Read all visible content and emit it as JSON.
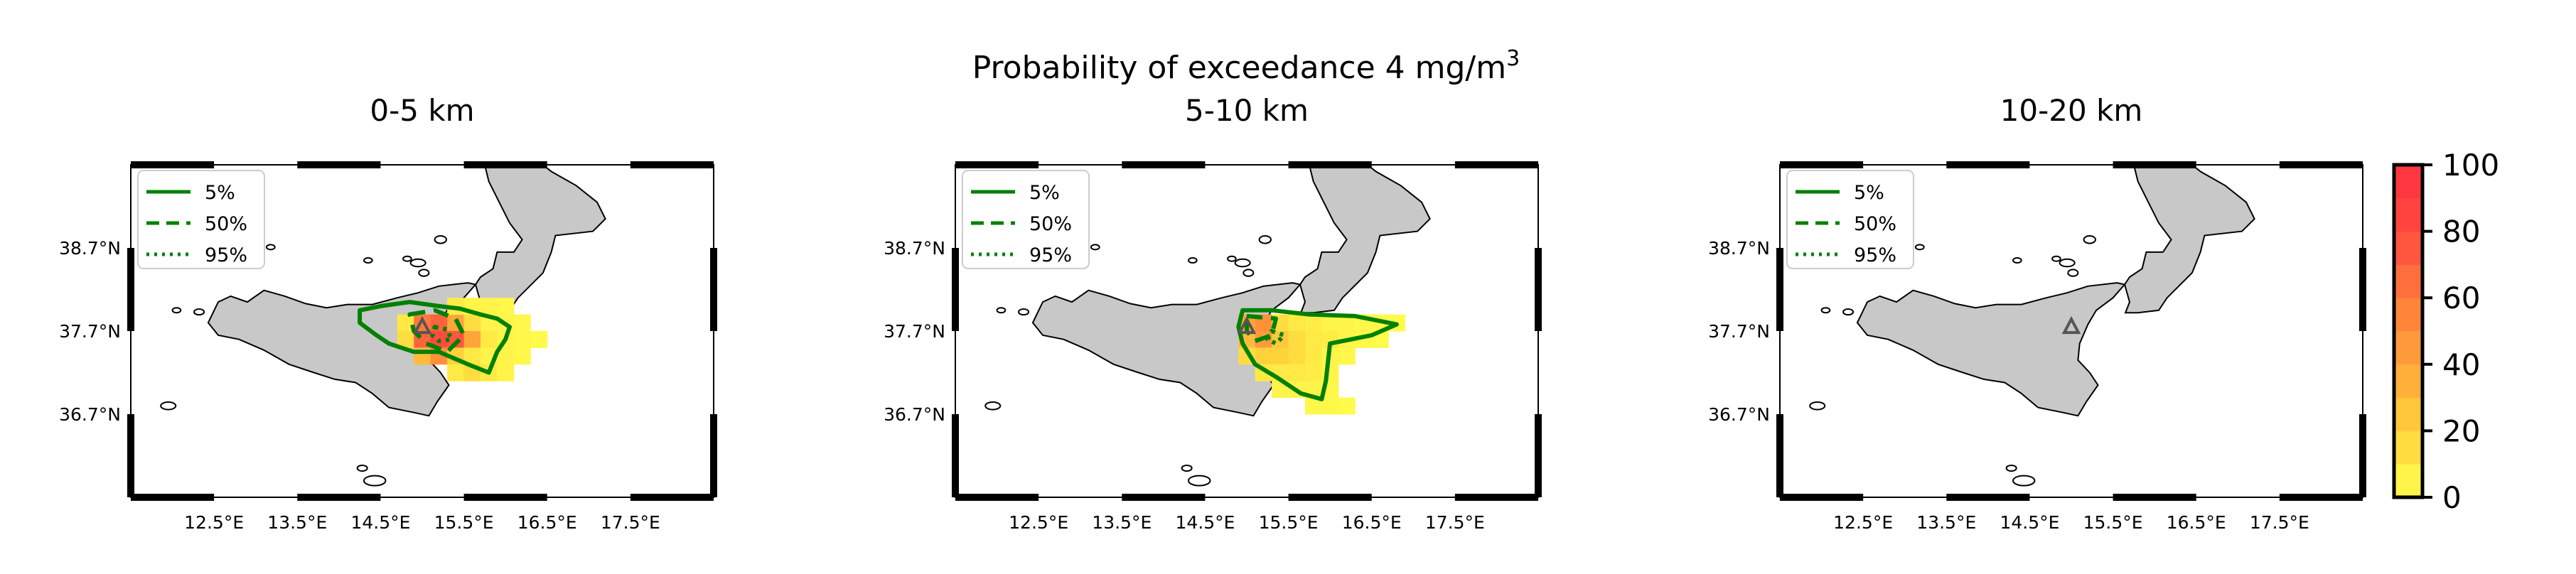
{
  "figure": {
    "title_main": "Probability of exceedance 4 mg/m",
    "title_superscript": "3"
  },
  "chart_data": [
    {
      "type": "heatmap",
      "title": "0-5 km",
      "xlim": [
        11.5,
        18.5
      ],
      "ylim": [
        35.7,
        39.7
      ],
      "xticks": [
        "12.5°E",
        "13.5°E",
        "14.5°E",
        "15.5°E",
        "16.5°E",
        "17.5°E"
      ],
      "xtick_values": [
        12.5,
        13.5,
        14.5,
        15.5,
        16.5,
        17.5
      ],
      "yticks": [
        "38.7°N",
        "37.7°N",
        "36.7°N"
      ],
      "ytick_values": [
        38.7,
        37.7,
        36.7
      ],
      "legend": [
        "5%",
        "50%",
        "95%"
      ],
      "legend_position": "top-left",
      "vent": [
        15.0,
        37.75
      ],
      "cell_size": [
        0.2,
        0.2
      ],
      "cells": [
        [
          14.8,
          37.8,
          10
        ],
        [
          15.0,
          37.8,
          60
        ],
        [
          15.2,
          37.8,
          70
        ],
        [
          15.4,
          37.8,
          40
        ],
        [
          15.6,
          37.8,
          15
        ],
        [
          14.8,
          37.6,
          15
        ],
        [
          15.0,
          37.6,
          70
        ],
        [
          15.2,
          37.6,
          80
        ],
        [
          15.4,
          37.6,
          75
        ],
        [
          15.6,
          37.6,
          40
        ],
        [
          15.8,
          37.6,
          10
        ],
        [
          15.0,
          37.4,
          30
        ],
        [
          15.2,
          37.4,
          50
        ],
        [
          15.4,
          37.4,
          20
        ],
        [
          15.6,
          37.4,
          10
        ],
        [
          15.4,
          38.0,
          8
        ],
        [
          15.6,
          38.0,
          5
        ],
        [
          15.8,
          38.0,
          5
        ],
        [
          16.0,
          38.0,
          3
        ],
        [
          15.8,
          37.8,
          5
        ],
        [
          16.0,
          37.8,
          5
        ],
        [
          16.2,
          37.8,
          3
        ],
        [
          16.0,
          37.6,
          5
        ],
        [
          16.2,
          37.6,
          3
        ],
        [
          16.4,
          37.6,
          2
        ],
        [
          15.8,
          37.4,
          5
        ],
        [
          16.0,
          37.4,
          5
        ],
        [
          16.2,
          37.4,
          3
        ],
        [
          15.4,
          37.2,
          10
        ],
        [
          15.6,
          37.2,
          15
        ],
        [
          15.8,
          37.2,
          10
        ],
        [
          16.0,
          37.2,
          5
        ]
      ],
      "contour_5": [
        [
          14.25,
          37.95
        ],
        [
          14.5,
          38.0
        ],
        [
          14.85,
          38.05
        ],
        [
          15.2,
          38.0
        ],
        [
          15.45,
          37.97
        ],
        [
          15.7,
          37.9
        ],
        [
          15.9,
          37.85
        ],
        [
          16.05,
          37.75
        ],
        [
          16.0,
          37.6
        ],
        [
          15.9,
          37.45
        ],
        [
          15.8,
          37.2
        ],
        [
          15.55,
          37.3
        ],
        [
          15.2,
          37.45
        ],
        [
          14.9,
          37.45
        ],
        [
          14.6,
          37.55
        ],
        [
          14.45,
          37.65
        ],
        [
          14.25,
          37.8
        ]
      ],
      "contour_50": [
        [
          14.85,
          37.9
        ],
        [
          15.15,
          37.95
        ],
        [
          15.4,
          37.85
        ],
        [
          15.5,
          37.65
        ],
        [
          15.3,
          37.45
        ],
        [
          15.05,
          37.55
        ],
        [
          14.9,
          37.7
        ]
      ],
      "contour_95": [
        [
          15.15,
          37.75
        ],
        [
          15.3,
          37.72
        ],
        [
          15.35,
          37.6
        ],
        [
          15.2,
          37.58
        ],
        [
          15.12,
          37.65
        ]
      ]
    },
    {
      "type": "heatmap",
      "title": "5-10 km",
      "xlim": [
        11.5,
        18.5
      ],
      "ylim": [
        35.7,
        39.7
      ],
      "xticks": [
        "12.5°E",
        "13.5°E",
        "14.5°E",
        "15.5°E",
        "16.5°E",
        "17.5°E"
      ],
      "xtick_values": [
        12.5,
        13.5,
        14.5,
        15.5,
        16.5,
        17.5
      ],
      "yticks": [
        "38.7°N",
        "37.7°N",
        "36.7°N"
      ],
      "ytick_values": [
        38.7,
        37.7,
        36.7
      ],
      "legend": [
        "5%",
        "50%",
        "95%"
      ],
      "legend_position": "top-left",
      "vent": [
        15.0,
        37.75
      ],
      "cell_size": [
        0.2,
        0.2
      ],
      "cells": [
        [
          15.0,
          37.8,
          40
        ],
        [
          15.2,
          37.8,
          50
        ],
        [
          15.4,
          37.8,
          15
        ],
        [
          15.6,
          37.8,
          10
        ],
        [
          15.8,
          37.8,
          8
        ],
        [
          16.0,
          37.8,
          5
        ],
        [
          16.2,
          37.8,
          5
        ],
        [
          16.4,
          37.8,
          3
        ],
        [
          16.6,
          37.8,
          3
        ],
        [
          16.8,
          37.8,
          2
        ],
        [
          15.0,
          37.6,
          30
        ],
        [
          15.2,
          37.6,
          45
        ],
        [
          15.4,
          37.6,
          25
        ],
        [
          15.6,
          37.6,
          15
        ],
        [
          15.8,
          37.6,
          10
        ],
        [
          16.0,
          37.6,
          8
        ],
        [
          16.2,
          37.6,
          5
        ],
        [
          16.4,
          37.6,
          3
        ],
        [
          16.6,
          37.6,
          2
        ],
        [
          15.0,
          37.4,
          15
        ],
        [
          15.2,
          37.4,
          20
        ],
        [
          15.4,
          37.4,
          20
        ],
        [
          15.6,
          37.4,
          15
        ],
        [
          15.8,
          37.4,
          10
        ],
        [
          16.0,
          37.4,
          5
        ],
        [
          16.2,
          37.4,
          3
        ],
        [
          15.2,
          37.2,
          10
        ],
        [
          15.4,
          37.2,
          10
        ],
        [
          15.6,
          37.2,
          10
        ],
        [
          15.8,
          37.2,
          8
        ],
        [
          16.0,
          37.2,
          5
        ],
        [
          15.4,
          37.0,
          5
        ],
        [
          15.6,
          37.0,
          5
        ],
        [
          15.8,
          37.0,
          5
        ],
        [
          16.0,
          37.0,
          3
        ],
        [
          15.8,
          36.8,
          3
        ],
        [
          16.0,
          36.8,
          3
        ],
        [
          16.2,
          36.8,
          2
        ]
      ],
      "contour_5": [
        [
          14.95,
          37.95
        ],
        [
          15.3,
          37.95
        ],
        [
          15.75,
          37.9
        ],
        [
          16.3,
          37.88
        ],
        [
          16.8,
          37.78
        ],
        [
          16.5,
          37.65
        ],
        [
          16.0,
          37.55
        ],
        [
          15.95,
          37.1
        ],
        [
          15.9,
          36.88
        ],
        [
          15.65,
          36.95
        ],
        [
          15.35,
          37.15
        ],
        [
          15.1,
          37.3
        ],
        [
          14.95,
          37.55
        ],
        [
          14.9,
          37.75
        ]
      ],
      "contour_50": [
        [
          15.0,
          37.88
        ],
        [
          15.35,
          37.85
        ],
        [
          15.3,
          37.65
        ],
        [
          15.1,
          37.58
        ],
        [
          15.0,
          37.7
        ]
      ],
      "contour_95": [
        [
          15.3,
          37.7
        ],
        [
          15.45,
          37.65
        ],
        [
          15.35,
          37.55
        ],
        [
          15.25,
          37.6
        ]
      ]
    },
    {
      "type": "heatmap",
      "title": "10-20 km",
      "xlim": [
        11.5,
        18.5
      ],
      "ylim": [
        35.7,
        39.7
      ],
      "xticks": [
        "12.5°E",
        "13.5°E",
        "14.5°E",
        "15.5°E",
        "16.5°E",
        "17.5°E"
      ],
      "xtick_values": [
        12.5,
        13.5,
        14.5,
        15.5,
        16.5,
        17.5
      ],
      "yticks": [
        "38.7°N",
        "37.7°N",
        "36.7°N"
      ],
      "ytick_values": [
        38.7,
        37.7,
        36.7
      ],
      "legend": [
        "5%",
        "50%",
        "95%"
      ],
      "legend_position": "top-left",
      "vent": [
        15.0,
        37.75
      ],
      "cell_size": [
        0.2,
        0.2
      ],
      "cells": [],
      "contour_5": [],
      "contour_50": [],
      "contour_95": []
    }
  ],
  "colorbar": {
    "ticks": [
      "100",
      "80",
      "60",
      "40",
      "20",
      "0"
    ],
    "tick_values": [
      100,
      80,
      60,
      40,
      20,
      0
    ],
    "range": [
      0,
      100
    ],
    "colors": [
      "#ffff4d",
      "#ffd23c",
      "#ffa53a",
      "#ff7a3a",
      "#ff4a40",
      "#ff3040"
    ]
  },
  "colors": {
    "land": "#c8c8c8",
    "contour": "#008000",
    "vent": "#555555"
  }
}
